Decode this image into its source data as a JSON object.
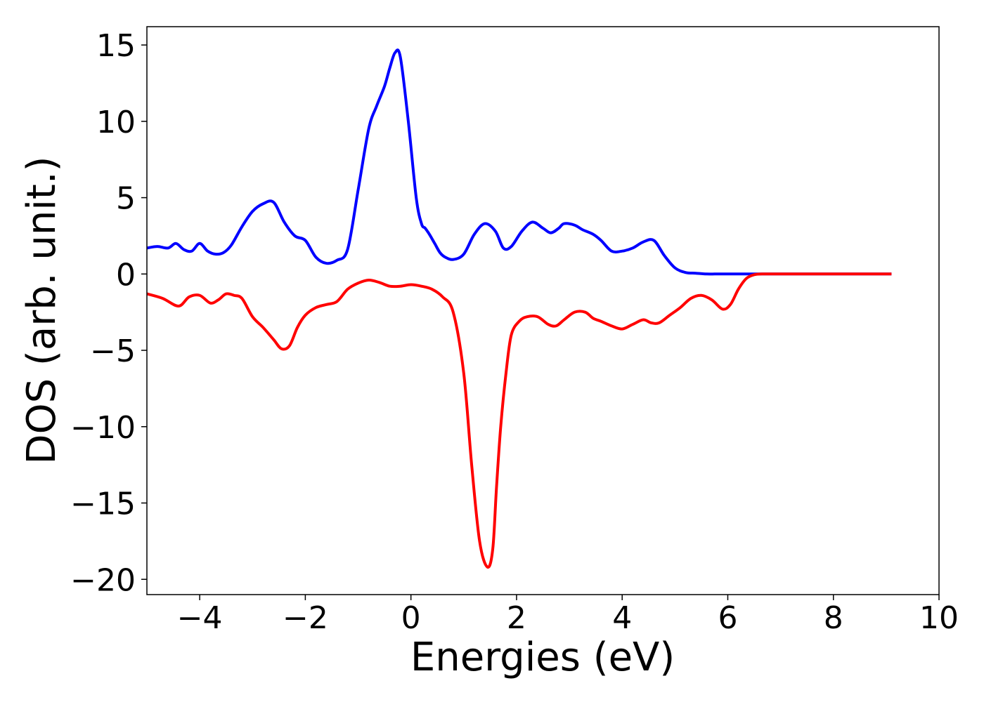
{
  "chart_data": {
    "type": "line",
    "title": "",
    "xlabel": "Energies (eV)",
    "ylabel": "DOS (arb. unit.)",
    "xlim": [
      -5,
      10
    ],
    "ylim": [
      -21,
      16.2
    ],
    "grid": false,
    "legend": "none",
    "x_ticks": [
      -4,
      -2,
      0,
      2,
      4,
      6,
      8,
      10
    ],
    "x_tick_labels": [
      "−4",
      "−2",
      "0",
      "2",
      "4",
      "6",
      "8",
      "10"
    ],
    "y_ticks": [
      15,
      10,
      5,
      0,
      -5,
      -10,
      -15,
      -20
    ],
    "y_tick_labels": [
      "15",
      "10",
      "5",
      "0",
      "−5",
      "−10",
      "−15",
      "−20"
    ],
    "series": [
      {
        "color": "#0000ff",
        "x": [
          -5.0,
          -4.8,
          -4.6,
          -4.45,
          -4.3,
          -4.15,
          -4.0,
          -3.85,
          -3.7,
          -3.55,
          -3.4,
          -3.2,
          -3.0,
          -2.8,
          -2.6,
          -2.4,
          -2.2,
          -2.0,
          -1.8,
          -1.6,
          -1.4,
          -1.2,
          -1.0,
          -0.8,
          -0.65,
          -0.5,
          -0.4,
          -0.3,
          -0.2,
          -0.05,
          0.1,
          0.2,
          0.27,
          0.35,
          0.45,
          0.55,
          0.65,
          0.8,
          1.0,
          1.2,
          1.4,
          1.6,
          1.75,
          1.9,
          2.1,
          2.3,
          2.5,
          2.65,
          2.8,
          2.9,
          3.1,
          3.25,
          3.45,
          3.6,
          3.8,
          4.0,
          4.2,
          4.4,
          4.6,
          4.8,
          5.0,
          5.2,
          5.4,
          5.6,
          5.75,
          5.85,
          5.95,
          6.05,
          6.2,
          6.4,
          6.6,
          6.8,
          7.0,
          7.5,
          8.0,
          8.5,
          9.1
        ],
        "y": [
          1.7,
          1.8,
          1.7,
          2.0,
          1.6,
          1.5,
          2.0,
          1.5,
          1.3,
          1.4,
          1.9,
          3.1,
          4.1,
          4.6,
          4.7,
          3.4,
          2.5,
          2.2,
          1.1,
          0.7,
          0.9,
          1.6,
          5.5,
          9.5,
          11.0,
          12.3,
          13.5,
          14.5,
          14.2,
          10.0,
          5.0,
          3.3,
          3.0,
          2.6,
          2.0,
          1.4,
          1.1,
          0.95,
          1.3,
          2.6,
          3.3,
          2.8,
          1.7,
          1.8,
          2.8,
          3.4,
          3.0,
          2.7,
          3.0,
          3.3,
          3.2,
          2.9,
          2.6,
          2.2,
          1.5,
          1.5,
          1.7,
          2.1,
          2.2,
          1.2,
          0.4,
          0.1,
          0.05,
          0.0,
          0.0,
          0.0,
          0.0,
          0.0,
          0.0,
          0.0,
          0.0,
          0.0,
          0.0,
          0.0,
          0.0,
          0.0,
          0.0
        ]
      },
      {
        "color": "#ff0000",
        "x": [
          -5.0,
          -4.7,
          -4.4,
          -4.2,
          -4.0,
          -3.8,
          -3.65,
          -3.5,
          -3.35,
          -3.2,
          -3.0,
          -2.8,
          -2.6,
          -2.45,
          -2.3,
          -2.15,
          -2.0,
          -1.8,
          -1.6,
          -1.4,
          -1.2,
          -1.0,
          -0.8,
          -0.6,
          -0.4,
          -0.2,
          0.0,
          0.2,
          0.4,
          0.6,
          0.8,
          1.0,
          1.15,
          1.3,
          1.45,
          1.55,
          1.62,
          1.7,
          1.8,
          1.9,
          2.05,
          2.2,
          2.4,
          2.6,
          2.75,
          2.9,
          3.1,
          3.3,
          3.45,
          3.6,
          3.8,
          4.0,
          4.2,
          4.4,
          4.55,
          4.7,
          4.9,
          5.1,
          5.3,
          5.5,
          5.7,
          5.9,
          6.05,
          6.2,
          6.35,
          6.5,
          6.65,
          6.8,
          7.0,
          7.5,
          8.0,
          8.5,
          9.1
        ],
        "y": [
          -1.3,
          -1.6,
          -2.1,
          -1.5,
          -1.4,
          -1.9,
          -1.7,
          -1.3,
          -1.4,
          -1.6,
          -2.8,
          -3.5,
          -4.3,
          -4.9,
          -4.7,
          -3.5,
          -2.7,
          -2.2,
          -2.0,
          -1.8,
          -1.0,
          -0.6,
          -0.4,
          -0.55,
          -0.8,
          -0.8,
          -0.7,
          -0.8,
          -1.0,
          -1.5,
          -2.5,
          -6.5,
          -12.5,
          -17.5,
          -19.2,
          -18.0,
          -14.0,
          -10.0,
          -6.5,
          -4.0,
          -3.1,
          -2.8,
          -2.8,
          -3.3,
          -3.4,
          -3.0,
          -2.5,
          -2.5,
          -2.9,
          -3.1,
          -3.4,
          -3.6,
          -3.3,
          -3.0,
          -3.2,
          -3.2,
          -2.7,
          -2.2,
          -1.6,
          -1.4,
          -1.7,
          -2.3,
          -2.0,
          -1.0,
          -0.3,
          -0.05,
          0.0,
          0.0,
          0.0,
          0.0,
          0.0,
          0.0,
          0.0
        ]
      }
    ]
  }
}
